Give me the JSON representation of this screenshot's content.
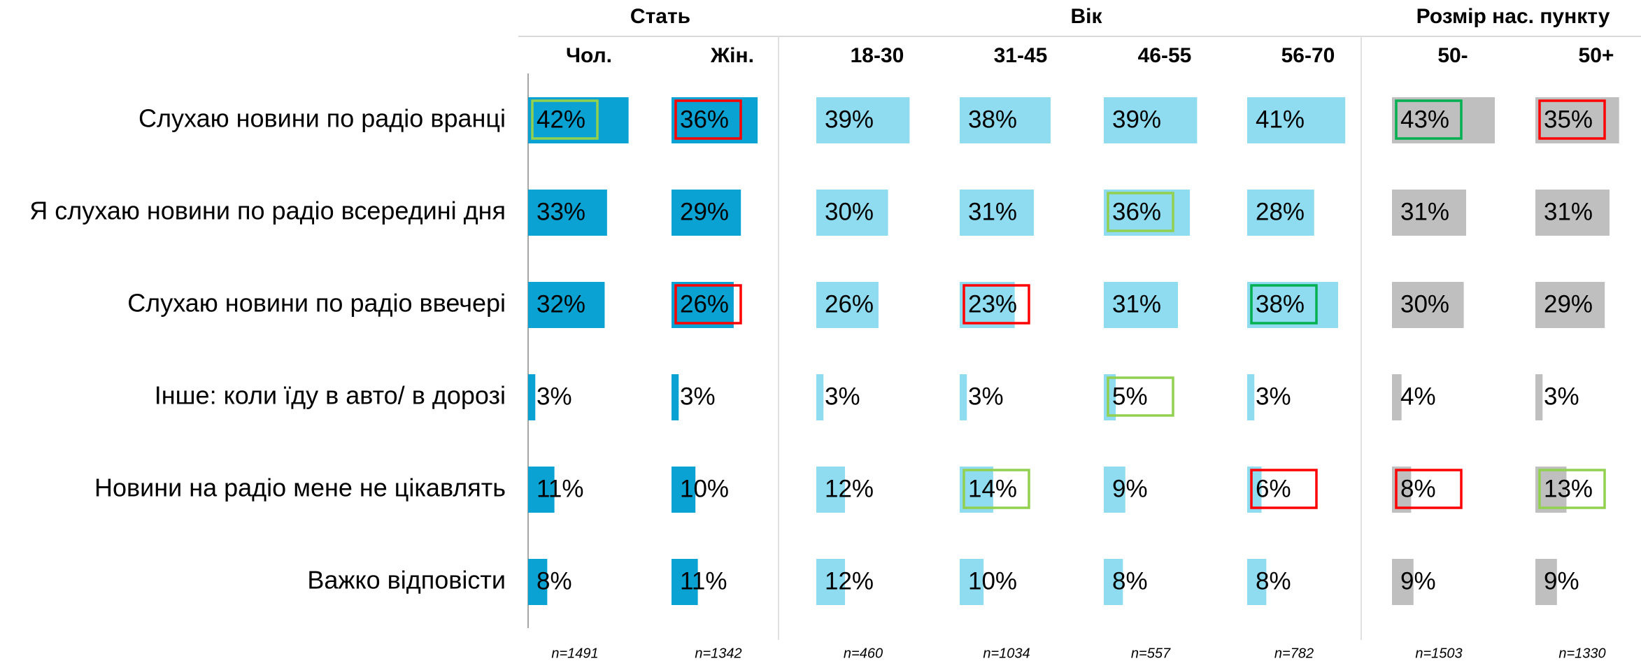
{
  "chart_data": {
    "type": "bar",
    "xlim": [
      0,
      100
    ],
    "categories": [
      "Слухаю новини по радіо вранці",
      "Я слухаю новини по радіо всередині дня",
      "Слухаю новини по радіо ввечері",
      "Інше: коли їду в авто/ в дорозі",
      "Новини на радіо мене не цікавлять",
      "Важко відповісти"
    ],
    "groups": [
      {
        "name": "Стать",
        "color": "#0aa2d2",
        "series": [
          {
            "name": "Чол.",
            "n": "n=1491",
            "values": [
              42,
              33,
              32,
              3,
              11,
              8
            ],
            "value_labels": [
              "42%",
              "33%",
              "32%",
              "3%",
              "11%",
              "8%"
            ],
            "box_colors": [
              "#92d050",
              null,
              null,
              null,
              null,
              null
            ]
          },
          {
            "name": "Жін.",
            "n": "n=1342",
            "values": [
              36,
              29,
              26,
              3,
              10,
              11
            ],
            "value_labels": [
              "36%",
              "29%",
              "26%",
              "3%",
              "10%",
              "11%"
            ],
            "box_colors": [
              "#ff0000",
              null,
              "#ff0000",
              null,
              null,
              null
            ]
          }
        ]
      },
      {
        "name": "Вік",
        "color": "#8fdbef",
        "series": [
          {
            "name": "18-30",
            "n": "n=460",
            "values": [
              39,
              30,
              26,
              3,
              12,
              12
            ],
            "value_labels": [
              "39%",
              "30%",
              "26%",
              "3%",
              "12%",
              "12%"
            ],
            "box_colors": [
              null,
              null,
              null,
              null,
              null,
              null
            ]
          },
          {
            "name": "31-45",
            "n": "n=1034",
            "values": [
              38,
              31,
              23,
              3,
              14,
              10
            ],
            "value_labels": [
              "38%",
              "31%",
              "23%",
              "3%",
              "14%",
              "10%"
            ],
            "box_colors": [
              null,
              null,
              "#ff0000",
              null,
              "#92d050",
              null
            ]
          },
          {
            "name": "46-55",
            "n": "n=557",
            "values": [
              39,
              36,
              31,
              5,
              9,
              8
            ],
            "value_labels": [
              "39%",
              "36%",
              "31%",
              "5%",
              "9%",
              "8%"
            ],
            "box_colors": [
              null,
              "#92d050",
              null,
              "#92d050",
              null,
              null
            ]
          },
          {
            "name": "56-70",
            "n": "n=782",
            "values": [
              41,
              28,
              38,
              3,
              6,
              8
            ],
            "value_labels": [
              "41%",
              "28%",
              "38%",
              "3%",
              "6%",
              "8%"
            ],
            "box_colors": [
              null,
              null,
              "#00b050",
              null,
              "#ff0000",
              null
            ]
          }
        ]
      },
      {
        "name": "Розмір нас. пункту",
        "color": "#bfbfbf",
        "series": [
          {
            "name": "50-",
            "n": "n=1503",
            "values": [
              43,
              31,
              30,
              4,
              8,
              9
            ],
            "value_labels": [
              "43%",
              "31%",
              "30%",
              "4%",
              "8%",
              "9%"
            ],
            "box_colors": [
              "#00b050",
              null,
              null,
              null,
              "#ff0000",
              null
            ]
          },
          {
            "name": "50+",
            "n": "n=1330",
            "values": [
              35,
              31,
              29,
              3,
              13,
              9
            ],
            "value_labels": [
              "35%",
              "31%",
              "29%",
              "3%",
              "13%",
              "9%"
            ],
            "box_colors": [
              "#ff0000",
              null,
              null,
              null,
              "#92d050",
              null
            ]
          }
        ]
      }
    ]
  }
}
